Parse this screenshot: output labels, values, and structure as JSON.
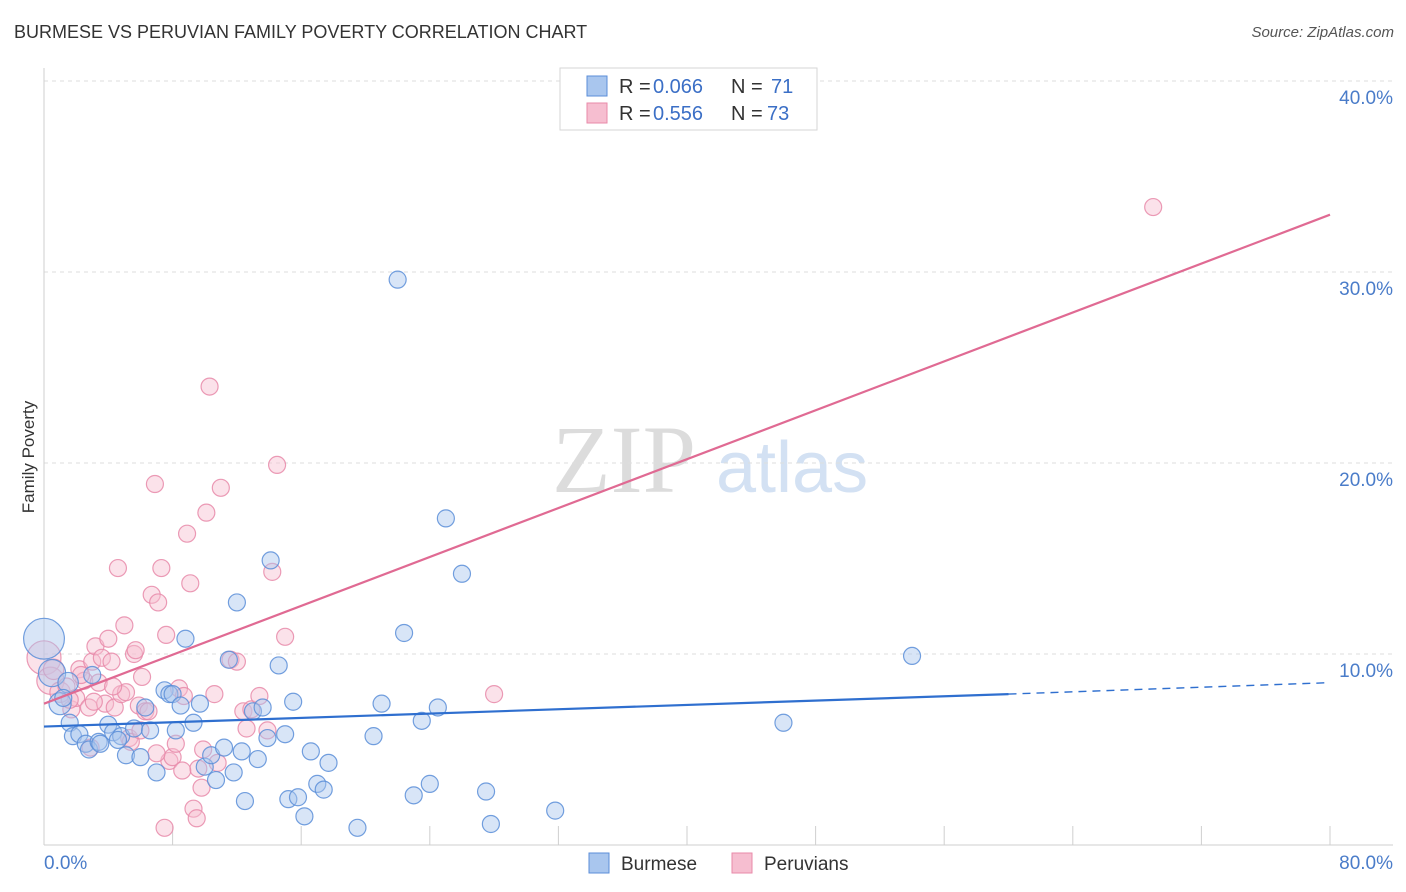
{
  "chart_data": {
    "type": "scatter",
    "title": "BURMESE VS PERUVIAN FAMILY POVERTY CORRELATION CHART",
    "source": "Source: ZipAtlas.com",
    "ylabel": "Family Poverty",
    "xlim": [
      0,
      80
    ],
    "ylim": [
      0,
      40
    ],
    "x_tick_labels": [
      "0.0%",
      "80.0%"
    ],
    "y_ticks": [
      {
        "value": 10,
        "label": "10.0%"
      },
      {
        "value": 20,
        "label": "20.0%"
      },
      {
        "value": 30,
        "label": "30.0%"
      },
      {
        "value": 40,
        "label": "40.0%"
      }
    ],
    "watermark": {
      "part1": "ZIP",
      "part2": "atlas"
    },
    "legend": {
      "r_label": "R =",
      "n_label": "N =",
      "entries": [
        {
          "name": "Burmese",
          "r": "0.066",
          "n": "71"
        },
        {
          "name": "Peruvians",
          "r": "0.556",
          "n": "73"
        }
      ]
    },
    "colors": {
      "burmese_fill": "#a9c6ee",
      "burmese_stroke": "#5b8ed8",
      "burmese_line": "#2f6fcf",
      "peruvian_fill": "#f6bed0",
      "peruvian_stroke": "#e88aa9",
      "peruvian_line": "#e06a93"
    },
    "series": [
      {
        "name": "Burmese",
        "trend": {
          "x0": 0,
          "y0": 6.2,
          "x1": 60,
          "y1": 7.9,
          "dash_to_x": 80,
          "dash_to_y": 8.5
        },
        "points": [
          [
            0,
            10.8,
            2.4
          ],
          [
            0.5,
            9.0,
            1.6
          ],
          [
            1.0,
            7.4,
            1.3
          ],
          [
            1.5,
            8.5,
            1.2
          ],
          [
            1.6,
            6.4,
            1
          ],
          [
            1.8,
            5.7,
            1
          ],
          [
            2.2,
            5.8,
            1
          ],
          [
            2.6,
            5.3,
            1
          ],
          [
            2.8,
            5.0,
            1
          ],
          [
            3.0,
            8.9,
            1
          ],
          [
            3.4,
            5.4,
            1
          ],
          [
            3.5,
            5.3,
            1
          ],
          [
            4.0,
            6.3,
            1
          ],
          [
            4.3,
            5.9,
            1
          ],
          [
            4.8,
            5.7,
            1
          ],
          [
            5.1,
            4.7,
            1
          ],
          [
            5.6,
            6.1,
            1
          ],
          [
            6.0,
            4.6,
            1
          ],
          [
            6.3,
            7.2,
            1
          ],
          [
            6.6,
            6.0,
            1
          ],
          [
            7.0,
            3.8,
            1
          ],
          [
            7.5,
            8.1,
            1
          ],
          [
            7.8,
            7.9,
            1
          ],
          [
            8.0,
            7.9,
            1
          ],
          [
            8.5,
            7.3,
            1
          ],
          [
            8.8,
            10.8,
            1
          ],
          [
            9.3,
            6.4,
            1
          ],
          [
            9.7,
            7.4,
            1
          ],
          [
            10.0,
            4.1,
            1
          ],
          [
            10.4,
            4.7,
            1
          ],
          [
            10.7,
            3.4,
            1
          ],
          [
            11.2,
            5.1,
            1
          ],
          [
            11.5,
            9.7,
            1
          ],
          [
            11.8,
            3.8,
            1
          ],
          [
            12.0,
            12.7,
            1
          ],
          [
            12.3,
            4.9,
            1
          ],
          [
            12.5,
            2.3,
            1
          ],
          [
            13.0,
            7.0,
            1
          ],
          [
            13.3,
            4.5,
            1
          ],
          [
            13.6,
            7.2,
            1
          ],
          [
            13.9,
            5.6,
            1
          ],
          [
            14.1,
            14.9,
            1
          ],
          [
            14.6,
            9.4,
            1
          ],
          [
            15.0,
            5.8,
            1
          ],
          [
            15.2,
            2.4,
            1
          ],
          [
            15.5,
            7.5,
            1
          ],
          [
            15.8,
            2.5,
            1
          ],
          [
            16.2,
            1.5,
            1
          ],
          [
            16.6,
            4.9,
            1
          ],
          [
            17.0,
            3.2,
            1
          ],
          [
            17.4,
            2.9,
            1
          ],
          [
            17.7,
            4.3,
            1
          ],
          [
            19.5,
            0.9,
            1
          ],
          [
            20.5,
            5.7,
            1
          ],
          [
            21.0,
            7.4,
            1
          ],
          [
            22.0,
            29.6,
            1
          ],
          [
            22.4,
            11.1,
            1
          ],
          [
            23.0,
            2.6,
            1
          ],
          [
            23.5,
            6.5,
            1
          ],
          [
            24.0,
            3.2,
            1
          ],
          [
            24.5,
            7.2,
            1
          ],
          [
            25.0,
            17.1,
            1
          ],
          [
            26.0,
            14.2,
            1
          ],
          [
            27.5,
            2.8,
            1
          ],
          [
            27.8,
            1.1,
            1
          ],
          [
            31.8,
            1.8,
            1
          ],
          [
            46.0,
            6.4,
            1
          ],
          [
            54.0,
            9.9,
            1
          ],
          [
            1.2,
            7.7,
            1
          ],
          [
            4.6,
            5.5,
            1
          ],
          [
            8.2,
            6.0,
            1
          ]
        ]
      },
      {
        "name": "Peruvians",
        "trend": {
          "x0": 0,
          "y0": 7.4,
          "x1": 80,
          "y1": 33.0
        },
        "points": [
          [
            0,
            9.8,
            2.0
          ],
          [
            0.4,
            8.6,
            1.6
          ],
          [
            0.6,
            9.2,
            1.2
          ],
          [
            1.0,
            8.0,
            1.2
          ],
          [
            1.4,
            8.3,
            1
          ],
          [
            1.7,
            7.1,
            1
          ],
          [
            2.0,
            7.7,
            1
          ],
          [
            2.2,
            9.2,
            1
          ],
          [
            2.5,
            8.6,
            1
          ],
          [
            2.8,
            7.2,
            1
          ],
          [
            3.0,
            9.6,
            1
          ],
          [
            3.2,
            10.4,
            1
          ],
          [
            3.4,
            8.5,
            1
          ],
          [
            3.6,
            9.8,
            1
          ],
          [
            3.8,
            7.4,
            1
          ],
          [
            4.0,
            10.8,
            1
          ],
          [
            4.2,
            9.6,
            1
          ],
          [
            4.4,
            7.2,
            1
          ],
          [
            4.6,
            14.5,
            1
          ],
          [
            4.8,
            7.9,
            1
          ],
          [
            5.0,
            11.5,
            1
          ],
          [
            5.1,
            8.0,
            1
          ],
          [
            5.3,
            5.6,
            1
          ],
          [
            5.6,
            10.0,
            1
          ],
          [
            5.7,
            10.2,
            1
          ],
          [
            5.9,
            7.3,
            1
          ],
          [
            6.1,
            8.8,
            1
          ],
          [
            6.3,
            7.0,
            1
          ],
          [
            6.5,
            7.0,
            1
          ],
          [
            6.7,
            13.1,
            1
          ],
          [
            6.9,
            18.9,
            1
          ],
          [
            7.1,
            12.7,
            1
          ],
          [
            7.3,
            14.5,
            1
          ],
          [
            7.5,
            0.9,
            1
          ],
          [
            7.6,
            11.0,
            1
          ],
          [
            7.8,
            4.4,
            1
          ],
          [
            8.0,
            4.6,
            1
          ],
          [
            8.2,
            5.3,
            1
          ],
          [
            8.4,
            8.2,
            1
          ],
          [
            8.7,
            7.8,
            1
          ],
          [
            8.9,
            16.3,
            1
          ],
          [
            9.1,
            13.7,
            1
          ],
          [
            9.3,
            1.9,
            1
          ],
          [
            9.5,
            1.4,
            1
          ],
          [
            9.6,
            4.0,
            1
          ],
          [
            9.8,
            3.0,
            1
          ],
          [
            10.1,
            17.4,
            1
          ],
          [
            10.3,
            24.0,
            1
          ],
          [
            10.6,
            7.9,
            1
          ],
          [
            10.8,
            4.3,
            1
          ],
          [
            11.0,
            18.7,
            1
          ],
          [
            11.6,
            9.7,
            1
          ],
          [
            12.0,
            9.6,
            1
          ],
          [
            12.4,
            7.0,
            1
          ],
          [
            12.6,
            6.1,
            1
          ],
          [
            12.9,
            7.1,
            1
          ],
          [
            13.4,
            7.8,
            1
          ],
          [
            13.9,
            6.0,
            1
          ],
          [
            14.2,
            14.3,
            1
          ],
          [
            14.5,
            19.9,
            1
          ],
          [
            15.0,
            10.9,
            1
          ],
          [
            28.0,
            7.9,
            1
          ],
          [
            69.0,
            33.4,
            1
          ],
          [
            1.6,
            7.6,
            1
          ],
          [
            2.3,
            8.9,
            1
          ],
          [
            3.1,
            7.5,
            1
          ],
          [
            4.3,
            8.3,
            1
          ],
          [
            5.4,
            5.4,
            1
          ],
          [
            6.0,
            6.0,
            1
          ],
          [
            7.0,
            4.8,
            1
          ],
          [
            8.6,
            3.9,
            1
          ],
          [
            9.9,
            5.0,
            1
          ],
          [
            2.9,
            5.1,
            1
          ]
        ]
      }
    ]
  }
}
